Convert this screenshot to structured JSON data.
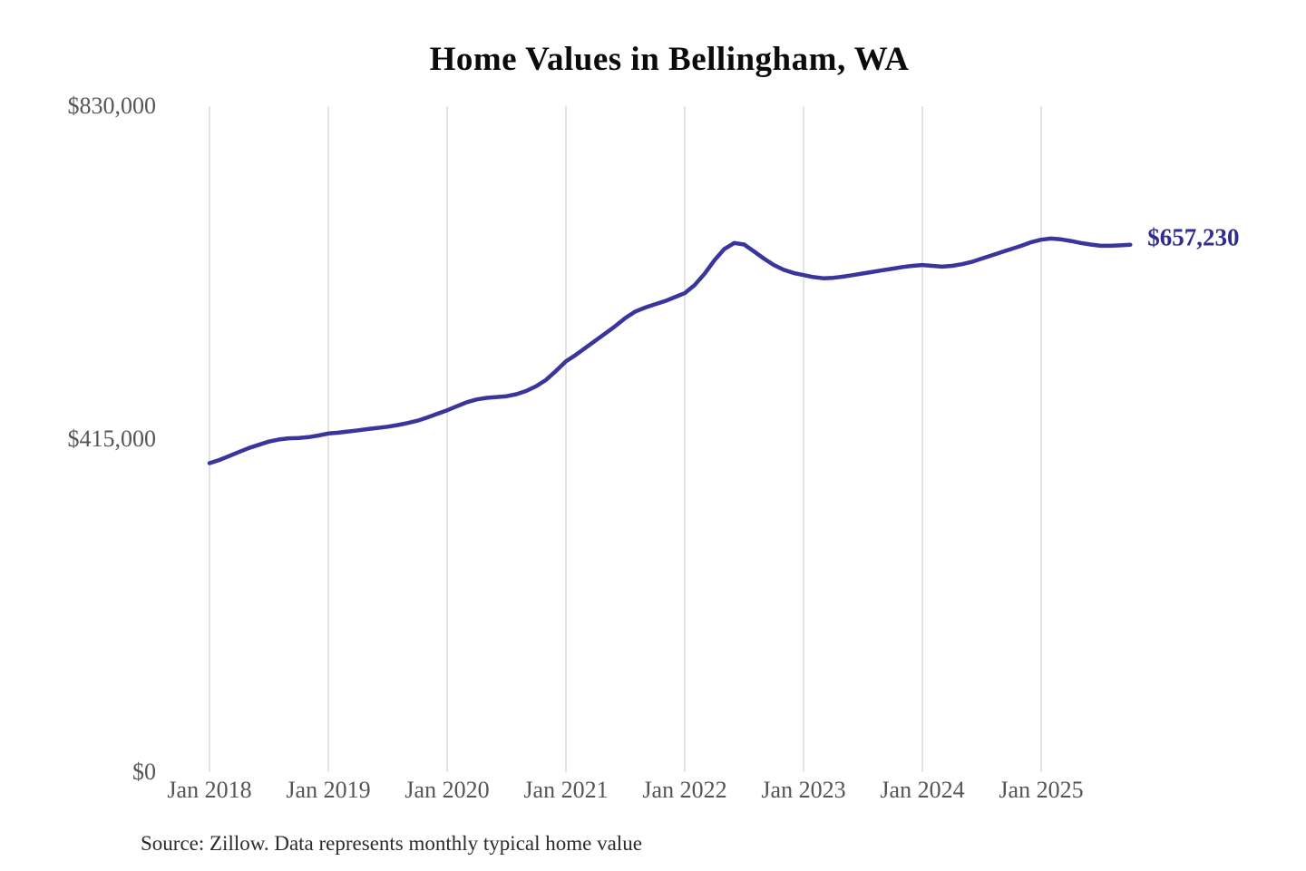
{
  "title": "Home Values in Bellingham, WA",
  "source_note": "Source: Zillow. Data represents monthly typical home value",
  "colors": {
    "line": "#3a359c",
    "grid": "#c9c9c9",
    "axis_text": "#555555",
    "title_text": "#0b0b0b",
    "end_label_text": "#302c90",
    "source_text": "#2b2b2b",
    "background": "#ffffff"
  },
  "chart_data": {
    "type": "line",
    "title": "Home Values in Bellingham, WA",
    "xlabel": "",
    "ylabel": "",
    "ylim": [
      0,
      830000
    ],
    "grid": "vertical-only",
    "legend": "none",
    "end_label": "$657,230",
    "end_value": 657230,
    "y_ticks": [
      {
        "label": "$0",
        "value": 0
      },
      {
        "label": "$415,000",
        "value": 415000
      },
      {
        "label": "$830,000",
        "value": 830000
      }
    ],
    "x_ticks": [
      {
        "label": "Jan 2018",
        "month_offset": 0
      },
      {
        "label": "Jan 2019",
        "month_offset": 12
      },
      {
        "label": "Jan 2020",
        "month_offset": 24
      },
      {
        "label": "Jan 2021",
        "month_offset": 36
      },
      {
        "label": "Jan 2022",
        "month_offset": 48
      },
      {
        "label": "Jan 2023",
        "month_offset": 60
      },
      {
        "label": "Jan 2024",
        "month_offset": 72
      },
      {
        "label": "Jan 2025",
        "month_offset": 84
      }
    ],
    "series": [
      {
        "name": "Monthly typical home value",
        "start_month": "Jan 2018",
        "end_month": "Oct 2025",
        "interval": "monthly",
        "values": [
          385000,
          389000,
          394000,
          399000,
          404000,
          408000,
          412000,
          414500,
          416000,
          416500,
          417500,
          419500,
          422000,
          423000,
          424500,
          426000,
          427500,
          429000,
          430500,
          432500,
          435000,
          438000,
          442000,
          446500,
          451000,
          456000,
          461000,
          464500,
          466500,
          467500,
          468500,
          471000,
          475000,
          481000,
          489000,
          500000,
          512000,
          520000,
          529000,
          538000,
          547000,
          556000,
          566000,
          574000,
          579000,
          583000,
          587000,
          592000,
          597000,
          607000,
          621000,
          638000,
          652000,
          659500,
          657500,
          649000,
          640000,
          632000,
          626000,
          622000,
          619500,
          617000,
          615500,
          616000,
          617500,
          619500,
          621500,
          623500,
          625500,
          627500,
          629500,
          631000,
          632000,
          631000,
          630000,
          631000,
          633000,
          636000,
          640000,
          644000,
          648000,
          652000,
          656000,
          660500,
          663500,
          665000,
          664000,
          662000,
          659500,
          657500,
          656000,
          656000,
          656500,
          657230
        ]
      }
    ]
  }
}
